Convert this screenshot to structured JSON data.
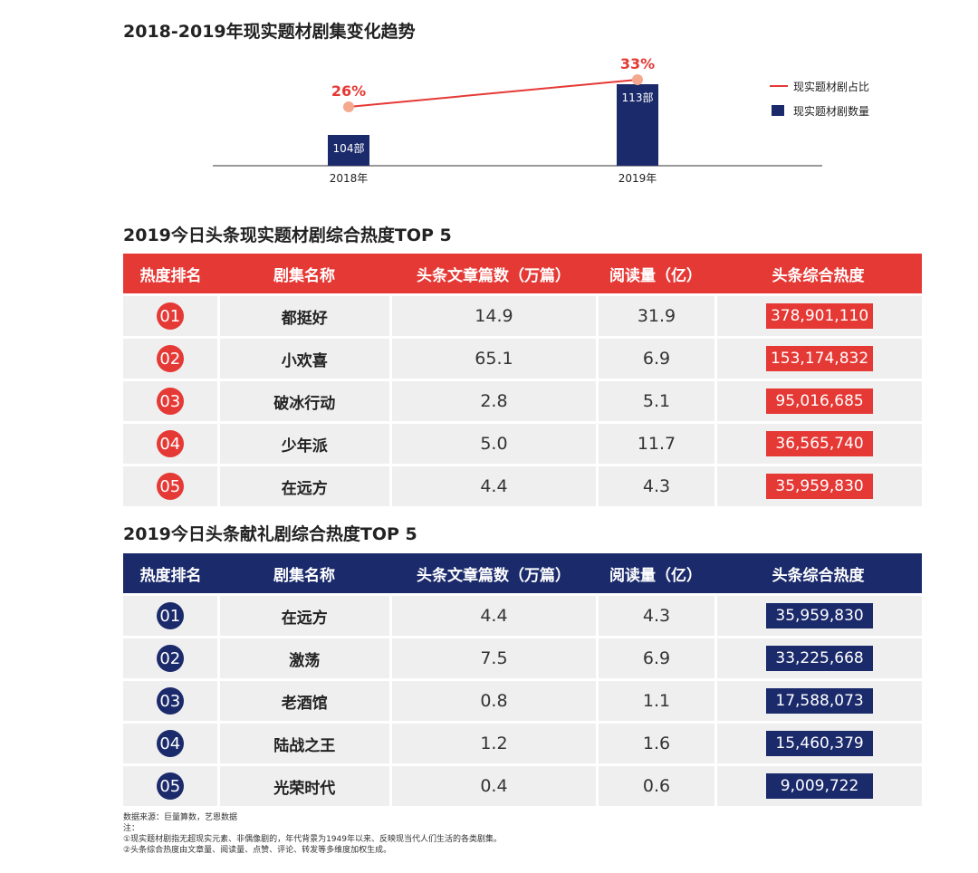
{
  "chart_data": {
    "type": "bar",
    "title": "2018-2019年现实题材剧集变化趋势",
    "categories": [
      "2018年",
      "2019年"
    ],
    "series": [
      {
        "name": "现实题材剧数量",
        "type": "bar",
        "values": [
          104,
          113
        ],
        "labels": [
          "104部",
          "113部"
        ],
        "color": "#1b2a6b"
      },
      {
        "name": "现实题材剧占比",
        "type": "line",
        "values": [
          26,
          33
        ],
        "labels": [
          "26%",
          "33%"
        ],
        "color": "#e53935"
      }
    ],
    "legend_position": "right",
    "grid": false
  },
  "table1": {
    "title": "2019今日头条现实题材剧综合热度TOP 5",
    "headers": [
      "热度排名",
      "剧集名称",
      "头条文章篇数（万篇）",
      "阅读量（亿）",
      "头条综合热度"
    ],
    "rows": [
      {
        "rank": "01",
        "name": "都挺好",
        "articles": "14.9",
        "reads": "31.9",
        "heat": "378,901,110"
      },
      {
        "rank": "02",
        "name": "小欢喜",
        "articles": "65.1",
        "reads": "6.9",
        "heat": "153,174,832"
      },
      {
        "rank": "03",
        "name": "破冰行动",
        "articles": "2.8",
        "reads": "5.1",
        "heat": "95,016,685"
      },
      {
        "rank": "04",
        "name": "少年派",
        "articles": "5.0",
        "reads": "11.7",
        "heat": "36,565,740"
      },
      {
        "rank": "05",
        "name": "在远方",
        "articles": "4.4",
        "reads": "4.3",
        "heat": "35,959,830"
      }
    ]
  },
  "table2": {
    "title": "2019今日头条献礼剧综合热度TOP 5",
    "headers": [
      "热度排名",
      "剧集名称",
      "头条文章篇数（万篇）",
      "阅读量（亿）",
      "头条综合热度"
    ],
    "rows": [
      {
        "rank": "01",
        "name": "在远方",
        "articles": "4.4",
        "reads": "4.3",
        "heat": "35,959,830"
      },
      {
        "rank": "02",
        "name": "激荡",
        "articles": "7.5",
        "reads": "6.9",
        "heat": "33,225,668"
      },
      {
        "rank": "03",
        "name": "老酒馆",
        "articles": "0.8",
        "reads": "1.1",
        "heat": "17,588,073"
      },
      {
        "rank": "04",
        "name": "陆战之王",
        "articles": "1.2",
        "reads": "1.6",
        "heat": "15,460,379"
      },
      {
        "rank": "05",
        "name": "光荣时代",
        "articles": "0.4",
        "reads": "0.6",
        "heat": "9,009,722"
      }
    ]
  },
  "notes": [
    "数据来源：巨量算数，艺恩数据",
    "注：",
    "①现实题材剧指无超现实元素、非偶像剧的，年代背景为1949年以来、反映现当代人们生活的各类剧集。",
    "②头条综合热度由文章量、阅读量、点赞、评论、转发等多维度加权生成。"
  ],
  "colors": {
    "red": "#e53935",
    "navy": "#1b2a6b"
  }
}
